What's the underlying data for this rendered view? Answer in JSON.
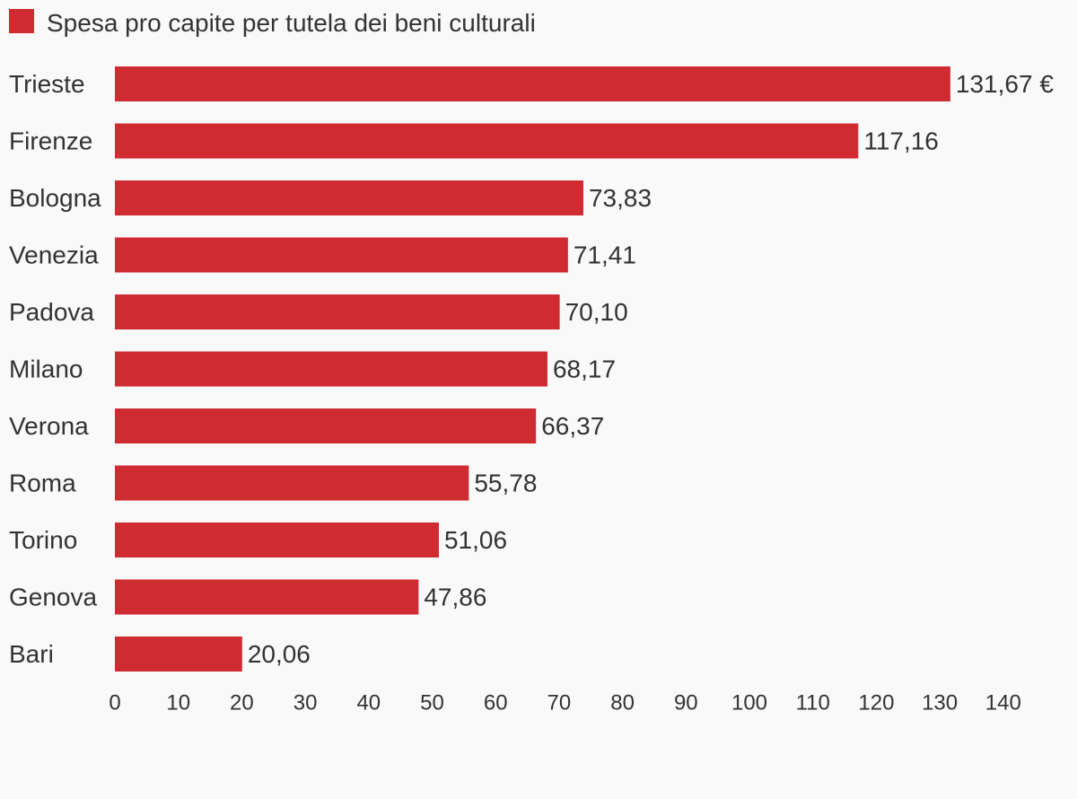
{
  "chart_data": {
    "type": "bar",
    "orientation": "horizontal",
    "legend": {
      "label": "Spesa pro capite per tutela dei beni culturali",
      "placement": "top-left"
    },
    "categories": [
      "Trieste",
      "Firenze",
      "Bologna",
      "Venezia",
      "Padova",
      "Milano",
      "Verona",
      "Roma",
      "Torino",
      "Genova",
      "Bari"
    ],
    "values": [
      131.67,
      117.16,
      73.83,
      71.41,
      70.1,
      68.17,
      66.37,
      55.78,
      51.06,
      47.86,
      20.06
    ],
    "value_labels": [
      "131,67 €",
      "117,16",
      "73,83",
      "71,41",
      "70,10",
      "68,17",
      "66,37",
      "55,78",
      "51,06",
      "47,86",
      "20,06"
    ],
    "xlim": [
      0,
      140
    ],
    "xticks": [
      0,
      10,
      20,
      30,
      40,
      50,
      60,
      70,
      80,
      90,
      100,
      110,
      120,
      130,
      140
    ],
    "grid": false,
    "colors": {
      "bar": "#d12b32",
      "text": "#333333",
      "background": "#f9f9f9"
    }
  }
}
